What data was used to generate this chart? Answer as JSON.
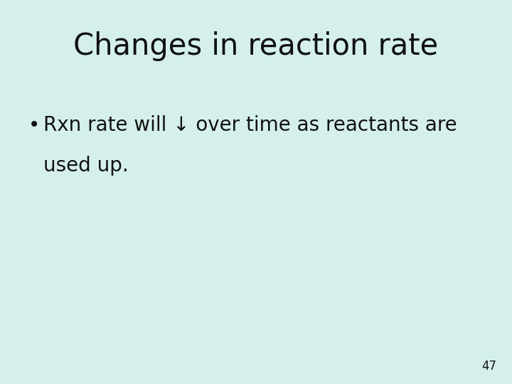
{
  "background_color": "#d5f0ec",
  "title": "Changes in reaction rate",
  "title_fontsize": 30,
  "title_color": "#111111",
  "bullet_text_line1": "Rxn rate will ↓ over time as reactants are",
  "bullet_text_line2": "used up.",
  "bullet_fontsize": 20,
  "bullet_color": "#111111",
  "page_number": "47",
  "page_number_fontsize": 12,
  "page_number_color": "#111111",
  "font_family": "DejaVu Sans"
}
